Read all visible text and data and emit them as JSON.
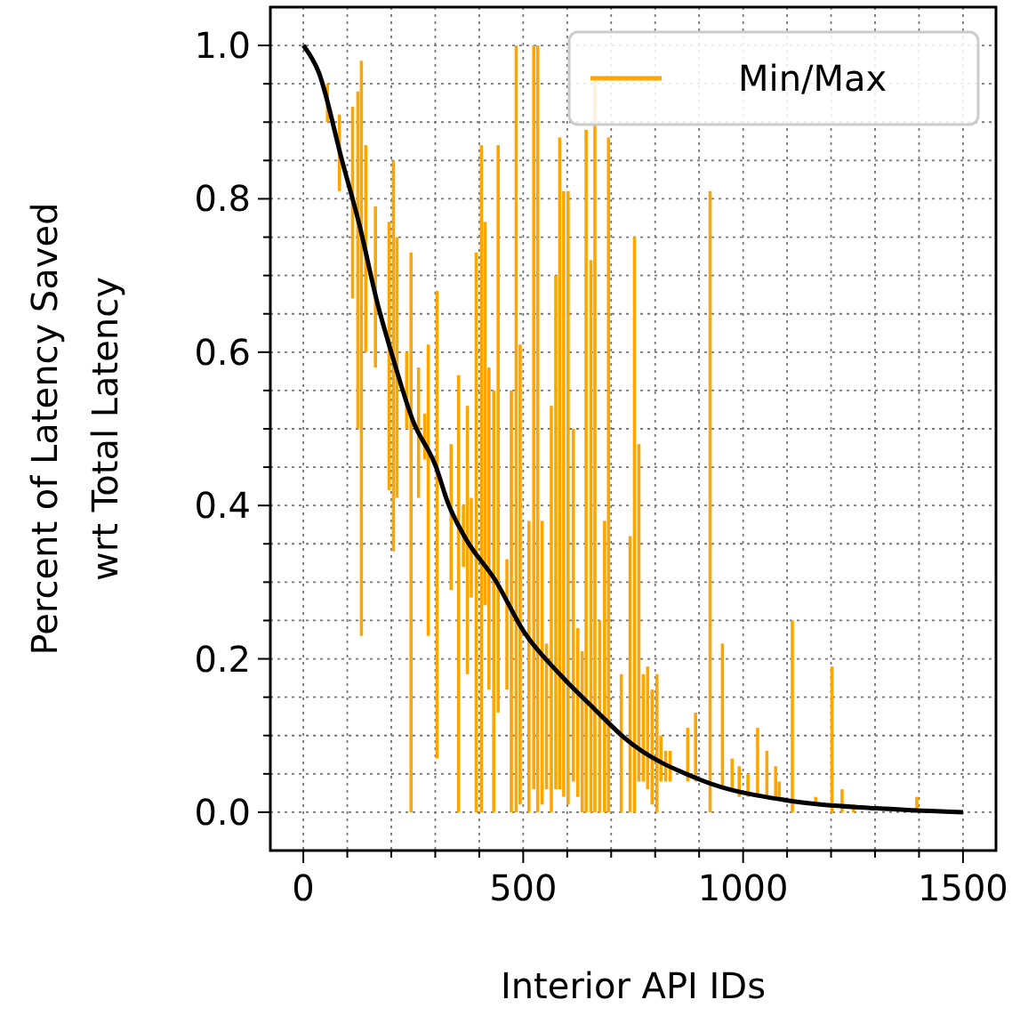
{
  "chart_data": {
    "type": "line",
    "xlabel": "Interior API IDs",
    "ylabel": "Percent of Latency Saved\nwrt Total Latency",
    "xlim": [
      -75,
      1575
    ],
    "ylim": [
      -0.05,
      1.05
    ],
    "xticks": [
      0,
      {
        "value": 100,
        "label": null
      },
      {
        "value": 200,
        "label": null
      },
      {
        "value": 300,
        "label": null
      },
      {
        "value": 400,
        "label": null
      },
      500,
      {
        "value": 600,
        "label": null
      },
      {
        "value": 700,
        "label": null
      },
      {
        "value": 800,
        "label": null
      },
      {
        "value": 900,
        "label": null
      },
      1000,
      {
        "value": 1100,
        "label": null
      },
      {
        "value": 1200,
        "label": null
      },
      {
        "value": 1300,
        "label": null
      },
      {
        "value": 1400,
        "label": null
      },
      1500
    ],
    "yticks": [
      {
        "value": 0,
        "label": "0.0"
      },
      {
        "value": 0.05,
        "label": null
      },
      {
        "value": 0.1,
        "label": null
      },
      {
        "value": 0.15,
        "label": null
      },
      {
        "value": 0.2,
        "label": "0.2"
      },
      {
        "value": 0.25,
        "label": null
      },
      {
        "value": 0.3,
        "label": null
      },
      {
        "value": 0.35,
        "label": null
      },
      {
        "value": 0.4,
        "label": "0.4"
      },
      {
        "value": 0.45,
        "label": null
      },
      {
        "value": 0.5,
        "label": null
      },
      {
        "value": 0.55,
        "label": null
      },
      {
        "value": 0.6,
        "label": "0.6"
      },
      {
        "value": 0.65,
        "label": null
      },
      {
        "value": 0.7,
        "label": null
      },
      {
        "value": 0.75,
        "label": null
      },
      {
        "value": 0.8,
        "label": "0.8"
      },
      {
        "value": 0.85,
        "label": null
      },
      {
        "value": 0.9,
        "label": null
      },
      {
        "value": 0.95,
        "label": null
      },
      {
        "value": 1.0,
        "label": "1.0"
      }
    ],
    "grid": true,
    "legend": "top right",
    "series": [
      {
        "name": "Min/Max",
        "type": "bar",
        "color": "#ffa500",
        "x": [
          55,
          82,
          112,
          124,
          132,
          142,
          164,
          195,
          205,
          213,
          235,
          245,
          262,
          276,
          284,
          304,
          336,
          353,
          364,
          373,
          382,
          393,
          405,
          413,
          422,
          433,
          443,
          463,
          473,
          484,
          493,
          513,
          524,
          533,
          543,
          553,
          564,
          574,
          583,
          592,
          602,
          614,
          624,
          634,
          643,
          654,
          663,
          674,
          685,
          694,
          723,
          743,
          753,
          763,
          773,
          783,
          793,
          804,
          813,
          824,
          834,
          874,
          892,
          925,
          953,
          975,
          991,
          1011,
          1033,
          1054,
          1074,
          1082,
          1112,
          1165,
          1202,
          1225,
          1251,
          1395
        ],
        "base": [
          0.9,
          0.81,
          0.67,
          0.5,
          0.23,
          0.6,
          0.58,
          0.42,
          0.34,
          0.41,
          0.5,
          0.0,
          0.41,
          0.46,
          0.23,
          0.07,
          0.29,
          0.0,
          0.32,
          0.18,
          0.28,
          0.0,
          0.0,
          0.27,
          0.16,
          0.0,
          0.13,
          0.16,
          0.0,
          0.0,
          0.01,
          0.0,
          0.03,
          0.0,
          0.01,
          0.03,
          0.0,
          0.03,
          0.03,
          0.02,
          0.01,
          0.04,
          0.02,
          0.0,
          0.0,
          0.0,
          0.0,
          0.0,
          0.0,
          0.0,
          0.0,
          0.0,
          0.0,
          0.04,
          0.04,
          0.03,
          0.01,
          0.0,
          0.04,
          0.04,
          0.04,
          0.04,
          0.04,
          0.0,
          0.03,
          0.03,
          0.02,
          0.02,
          0.02,
          0.02,
          0.02,
          0.02,
          0.0,
          0.01,
          0.0,
          0.0,
          0.0,
          0.0
        ],
        "values": [
          0.05,
          0.1,
          0.25,
          0.44,
          0.75,
          0.27,
          0.21,
          0.35,
          0.51,
          0.34,
          0.1,
          0.73,
          0.17,
          0.06,
          0.38,
          0.61,
          0.19,
          0.57,
          0.08,
          0.35,
          0.13,
          0.73,
          0.87,
          0.5,
          0.42,
          0.55,
          0.74,
          0.17,
          0.55,
          1.0,
          0.6,
          0.38,
          0.97,
          1.0,
          0.37,
          0.19,
          0.53,
          0.67,
          0.85,
          0.79,
          0.8,
          0.46,
          0.22,
          0.21,
          0.89,
          0.72,
          0.96,
          0.25,
          0.38,
          0.88,
          0.18,
          0.36,
          0.75,
          0.44,
          0.14,
          0.16,
          0.15,
          0.18,
          0.06,
          0.04,
          0.04,
          0.07,
          0.09,
          0.81,
          0.19,
          0.04,
          0.04,
          0.03,
          0.09,
          0.06,
          0.04,
          0.02,
          0.25,
          0.01,
          0.19,
          0.03,
          0.01,
          0.02
        ]
      },
      {
        "color": "#000000",
        "x": [
          0,
          35,
          88,
          128,
          168,
          202,
          249,
          302,
          329,
          369,
          436,
          503,
          583,
          663,
          730,
          904,
          1104,
          1305,
          1500
        ],
        "values": [
          1.0,
          0.965,
          0.85,
          0.765,
          0.665,
          0.596,
          0.511,
          0.45,
          0.403,
          0.357,
          0.303,
          0.234,
          0.18,
          0.134,
          0.097,
          0.042,
          0.015,
          0.005,
          0.0
        ]
      }
    ]
  }
}
